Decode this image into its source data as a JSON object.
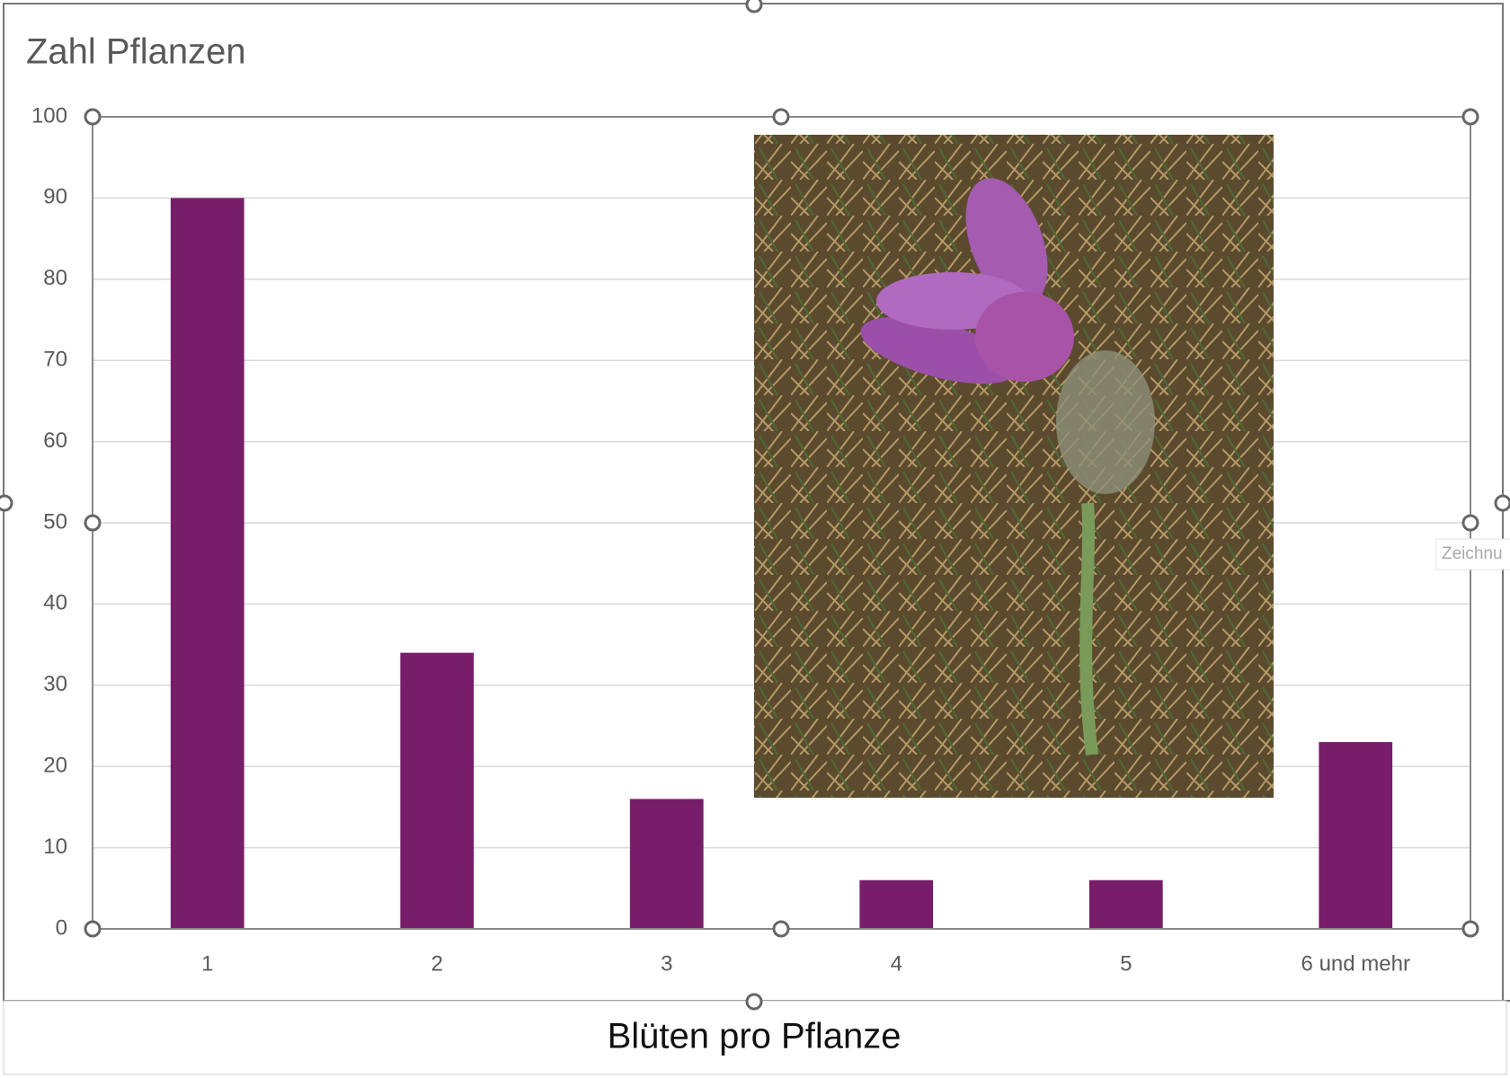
{
  "chart_data": {
    "type": "bar",
    "title": "Zahl Pflanzen",
    "x_label": "Blüten pro Pflanze",
    "categories": [
      "1",
      "2",
      "3",
      "4",
      "5",
      "6 und mehr"
    ],
    "values": [
      90,
      34,
      16,
      6,
      6,
      23
    ],
    "color": "#781d6a",
    "ylim": [
      0,
      100
    ],
    "yticks": [
      0,
      10,
      20,
      30,
      40,
      50,
      60,
      70,
      80,
      90,
      100
    ],
    "grid": true
  },
  "tooltip": "Zeichnu"
}
